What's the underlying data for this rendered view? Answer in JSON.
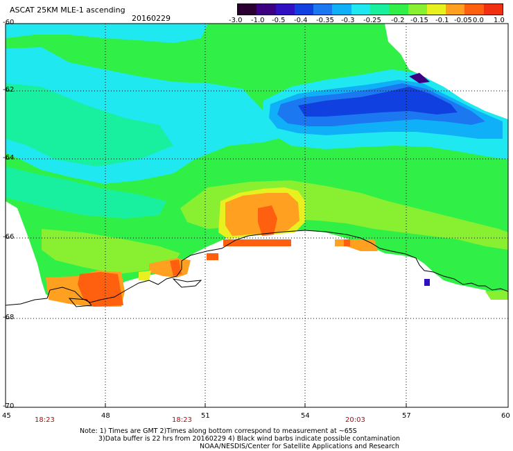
{
  "header": {
    "title": "ASCAT 25KM MLE-1 ascending",
    "date": "20160229"
  },
  "colorbar": {
    "labels": [
      "-3.0",
      "-1.0",
      "-0.5",
      "-0.4",
      "-0.35",
      "-0.3",
      "-0.25",
      "-0.2",
      "-0.15",
      "-0.1",
      "-0.05",
      "0.0",
      "1.0"
    ],
    "colors": [
      "#2a0030",
      "#3c0080",
      "#3010c0",
      "#1040e0",
      "#1c78f0",
      "#10b0f8",
      "#20e8f0",
      "#18f0a0",
      "#30f048",
      "#88f030",
      "#e8f020",
      "#ffa020",
      "#ff6010",
      "#f03010"
    ]
  },
  "map": {
    "lat_labels": [
      "-60",
      "-62",
      "-64",
      "-66",
      "-68",
      "-70"
    ],
    "lon_labels": [
      "45",
      "48",
      "51",
      "54",
      "57",
      "60"
    ],
    "time_labels": [
      "18:23",
      "18:23",
      "20:03"
    ]
  },
  "notes": {
    "line1": "Note: 1) Times are GMT 2)Times along bottom correspond to measurement at ~65S",
    "line2": "3)Data buffer is 22 hrs from 20160229 4) Black wind barbs indicate possible contamination",
    "line3": "NOAA/NESDIS/Center for Satellite Applications and Research"
  }
}
